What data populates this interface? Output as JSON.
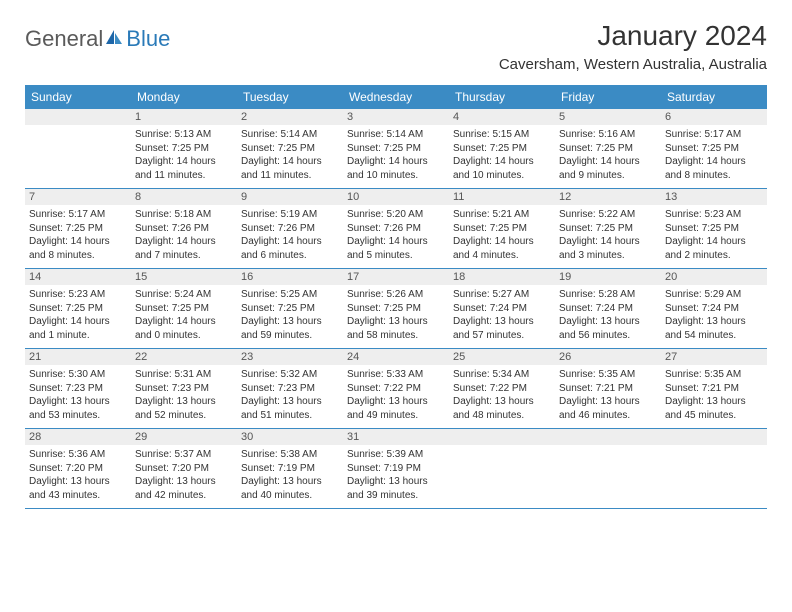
{
  "logo": {
    "part1": "General",
    "part2": "Blue"
  },
  "title": "January 2024",
  "location": "Caversham, Western Australia, Australia",
  "colors": {
    "header_bg": "#3b8bc4",
    "header_text": "#ffffff",
    "band_bg": "#eeeeee",
    "text": "#333333",
    "logo_gray": "#5a5a5a",
    "logo_blue": "#2a7ab8",
    "divider": "#3b8bc4"
  },
  "day_labels": [
    "Sunday",
    "Monday",
    "Tuesday",
    "Wednesday",
    "Thursday",
    "Friday",
    "Saturday"
  ],
  "weeks": [
    [
      null,
      {
        "n": "1",
        "sunrise": "5:13 AM",
        "sunset": "7:25 PM",
        "daylight": "14 hours and 11 minutes."
      },
      {
        "n": "2",
        "sunrise": "5:14 AM",
        "sunset": "7:25 PM",
        "daylight": "14 hours and 11 minutes."
      },
      {
        "n": "3",
        "sunrise": "5:14 AM",
        "sunset": "7:25 PM",
        "daylight": "14 hours and 10 minutes."
      },
      {
        "n": "4",
        "sunrise": "5:15 AM",
        "sunset": "7:25 PM",
        "daylight": "14 hours and 10 minutes."
      },
      {
        "n": "5",
        "sunrise": "5:16 AM",
        "sunset": "7:25 PM",
        "daylight": "14 hours and 9 minutes."
      },
      {
        "n": "6",
        "sunrise": "5:17 AM",
        "sunset": "7:25 PM",
        "daylight": "14 hours and 8 minutes."
      }
    ],
    [
      {
        "n": "7",
        "sunrise": "5:17 AM",
        "sunset": "7:25 PM",
        "daylight": "14 hours and 8 minutes."
      },
      {
        "n": "8",
        "sunrise": "5:18 AM",
        "sunset": "7:26 PM",
        "daylight": "14 hours and 7 minutes."
      },
      {
        "n": "9",
        "sunrise": "5:19 AM",
        "sunset": "7:26 PM",
        "daylight": "14 hours and 6 minutes."
      },
      {
        "n": "10",
        "sunrise": "5:20 AM",
        "sunset": "7:26 PM",
        "daylight": "14 hours and 5 minutes."
      },
      {
        "n": "11",
        "sunrise": "5:21 AM",
        "sunset": "7:25 PM",
        "daylight": "14 hours and 4 minutes."
      },
      {
        "n": "12",
        "sunrise": "5:22 AM",
        "sunset": "7:25 PM",
        "daylight": "14 hours and 3 minutes."
      },
      {
        "n": "13",
        "sunrise": "5:23 AM",
        "sunset": "7:25 PM",
        "daylight": "14 hours and 2 minutes."
      }
    ],
    [
      {
        "n": "14",
        "sunrise": "5:23 AM",
        "sunset": "7:25 PM",
        "daylight": "14 hours and 1 minute."
      },
      {
        "n": "15",
        "sunrise": "5:24 AM",
        "sunset": "7:25 PM",
        "daylight": "14 hours and 0 minutes."
      },
      {
        "n": "16",
        "sunrise": "5:25 AM",
        "sunset": "7:25 PM",
        "daylight": "13 hours and 59 minutes."
      },
      {
        "n": "17",
        "sunrise": "5:26 AM",
        "sunset": "7:25 PM",
        "daylight": "13 hours and 58 minutes."
      },
      {
        "n": "18",
        "sunrise": "5:27 AM",
        "sunset": "7:24 PM",
        "daylight": "13 hours and 57 minutes."
      },
      {
        "n": "19",
        "sunrise": "5:28 AM",
        "sunset": "7:24 PM",
        "daylight": "13 hours and 56 minutes."
      },
      {
        "n": "20",
        "sunrise": "5:29 AM",
        "sunset": "7:24 PM",
        "daylight": "13 hours and 54 minutes."
      }
    ],
    [
      {
        "n": "21",
        "sunrise": "5:30 AM",
        "sunset": "7:23 PM",
        "daylight": "13 hours and 53 minutes."
      },
      {
        "n": "22",
        "sunrise": "5:31 AM",
        "sunset": "7:23 PM",
        "daylight": "13 hours and 52 minutes."
      },
      {
        "n": "23",
        "sunrise": "5:32 AM",
        "sunset": "7:23 PM",
        "daylight": "13 hours and 51 minutes."
      },
      {
        "n": "24",
        "sunrise": "5:33 AM",
        "sunset": "7:22 PM",
        "daylight": "13 hours and 49 minutes."
      },
      {
        "n": "25",
        "sunrise": "5:34 AM",
        "sunset": "7:22 PM",
        "daylight": "13 hours and 48 minutes."
      },
      {
        "n": "26",
        "sunrise": "5:35 AM",
        "sunset": "7:21 PM",
        "daylight": "13 hours and 46 minutes."
      },
      {
        "n": "27",
        "sunrise": "5:35 AM",
        "sunset": "7:21 PM",
        "daylight": "13 hours and 45 minutes."
      }
    ],
    [
      {
        "n": "28",
        "sunrise": "5:36 AM",
        "sunset": "7:20 PM",
        "daylight": "13 hours and 43 minutes."
      },
      {
        "n": "29",
        "sunrise": "5:37 AM",
        "sunset": "7:20 PM",
        "daylight": "13 hours and 42 minutes."
      },
      {
        "n": "30",
        "sunrise": "5:38 AM",
        "sunset": "7:19 PM",
        "daylight": "13 hours and 40 minutes."
      },
      {
        "n": "31",
        "sunrise": "5:39 AM",
        "sunset": "7:19 PM",
        "daylight": "13 hours and 39 minutes."
      },
      null,
      null,
      null
    ]
  ],
  "labels": {
    "sunrise": "Sunrise: ",
    "sunset": "Sunset: ",
    "daylight": "Daylight: "
  }
}
